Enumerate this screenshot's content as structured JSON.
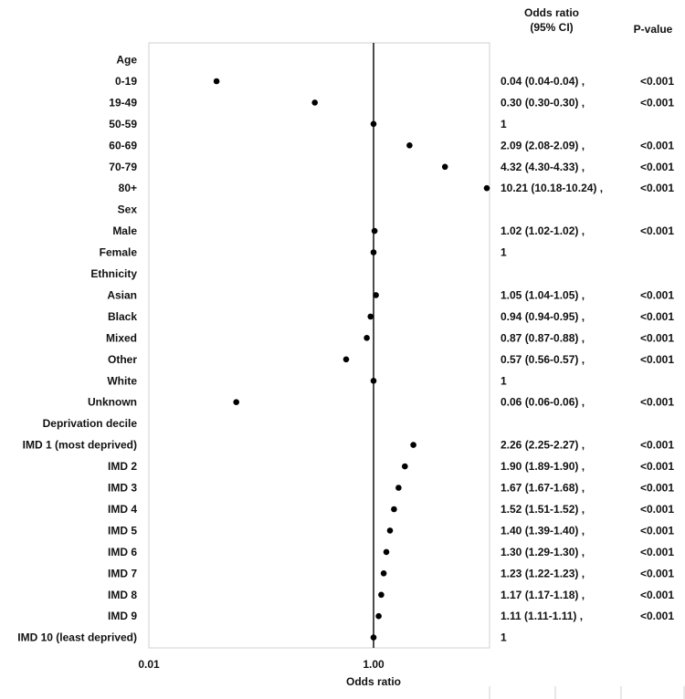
{
  "chart_data": {
    "type": "scatter",
    "title": "",
    "xlabel": "Odds ratio",
    "ylabel": "",
    "x_scale": "log",
    "xlim": [
      0.01,
      10.21
    ],
    "x_ticks": [
      "0.01",
      "1.00"
    ],
    "columns": {
      "or_header": "Odds ratio\n(95% CI)",
      "p_header": "P-value"
    },
    "rows": [
      {
        "label": "Age",
        "heading": true
      },
      {
        "label": "0-19",
        "or": 0.04,
        "ci": "0.04 (0.04-0.04) ,",
        "p": "<0.001"
      },
      {
        "label": "19-49",
        "or": 0.3,
        "ci": "0.30 (0.30-0.30) ,",
        "p": "<0.001"
      },
      {
        "label": "50-59",
        "or": 1,
        "ci": "1",
        "p": ""
      },
      {
        "label": "60-69",
        "or": 2.09,
        "ci": "2.09 (2.08-2.09) ,",
        "p": "<0.001"
      },
      {
        "label": "70-79",
        "or": 4.32,
        "ci": "4.32 (4.30-4.33) ,",
        "p": "<0.001"
      },
      {
        "label": "80+",
        "or": 10.21,
        "ci": "10.21 (10.18-10.24) ,",
        "p": "<0.001"
      },
      {
        "label": "Sex",
        "heading": true
      },
      {
        "label": "Male",
        "or": 1.02,
        "ci": "1.02 (1.02-1.02) ,",
        "p": "<0.001"
      },
      {
        "label": "Female",
        "or": 1,
        "ci": "1",
        "p": ""
      },
      {
        "label": "Ethnicity",
        "heading": true
      },
      {
        "label": "Asian",
        "or": 1.05,
        "ci": "1.05 (1.04-1.05) ,",
        "p": "<0.001"
      },
      {
        "label": "Black",
        "or": 0.94,
        "ci": "0.94 (0.94-0.95) ,",
        "p": "<0.001"
      },
      {
        "label": "Mixed",
        "or": 0.87,
        "ci": "0.87 (0.87-0.88) ,",
        "p": "<0.001"
      },
      {
        "label": "Other",
        "or": 0.57,
        "ci": "0.57 (0.56-0.57) ,",
        "p": "<0.001"
      },
      {
        "label": "White",
        "or": 1,
        "ci": "1",
        "p": ""
      },
      {
        "label": "Unknown",
        "or": 0.06,
        "ci": "0.06 (0.06-0.06) ,",
        "p": "<0.001"
      },
      {
        "label": "Deprivation decile",
        "heading": true
      },
      {
        "label": "IMD 1 (most deprived)",
        "or": 2.26,
        "ci": "2.26 (2.25-2.27) ,",
        "p": "<0.001"
      },
      {
        "label": "IMD 2",
        "or": 1.9,
        "ci": "1.90 (1.89-1.90) ,",
        "p": "<0.001"
      },
      {
        "label": "IMD 3",
        "or": 1.67,
        "ci": "1.67 (1.67-1.68) ,",
        "p": "<0.001"
      },
      {
        "label": "IMD 4",
        "or": 1.52,
        "ci": "1.52 (1.51-1.52) ,",
        "p": "<0.001"
      },
      {
        "label": "IMD 5",
        "or": 1.4,
        "ci": "1.40 (1.39-1.40) ,",
        "p": "<0.001"
      },
      {
        "label": "IMD 6",
        "or": 1.3,
        "ci": "1.30 (1.29-1.30) ,",
        "p": "<0.001"
      },
      {
        "label": "IMD 7",
        "or": 1.23,
        "ci": "1.23 (1.22-1.23) ,",
        "p": "<0.001"
      },
      {
        "label": "IMD 8",
        "or": 1.17,
        "ci": "1.17 (1.17-1.18) ,",
        "p": "<0.001"
      },
      {
        "label": "IMD 9",
        "or": 1.11,
        "ci": "1.11 (1.11-1.11) ,",
        "p": "<0.001"
      },
      {
        "label": "IMD 10 (least deprived)",
        "or": 1,
        "ci": "1",
        "p": ""
      }
    ]
  }
}
